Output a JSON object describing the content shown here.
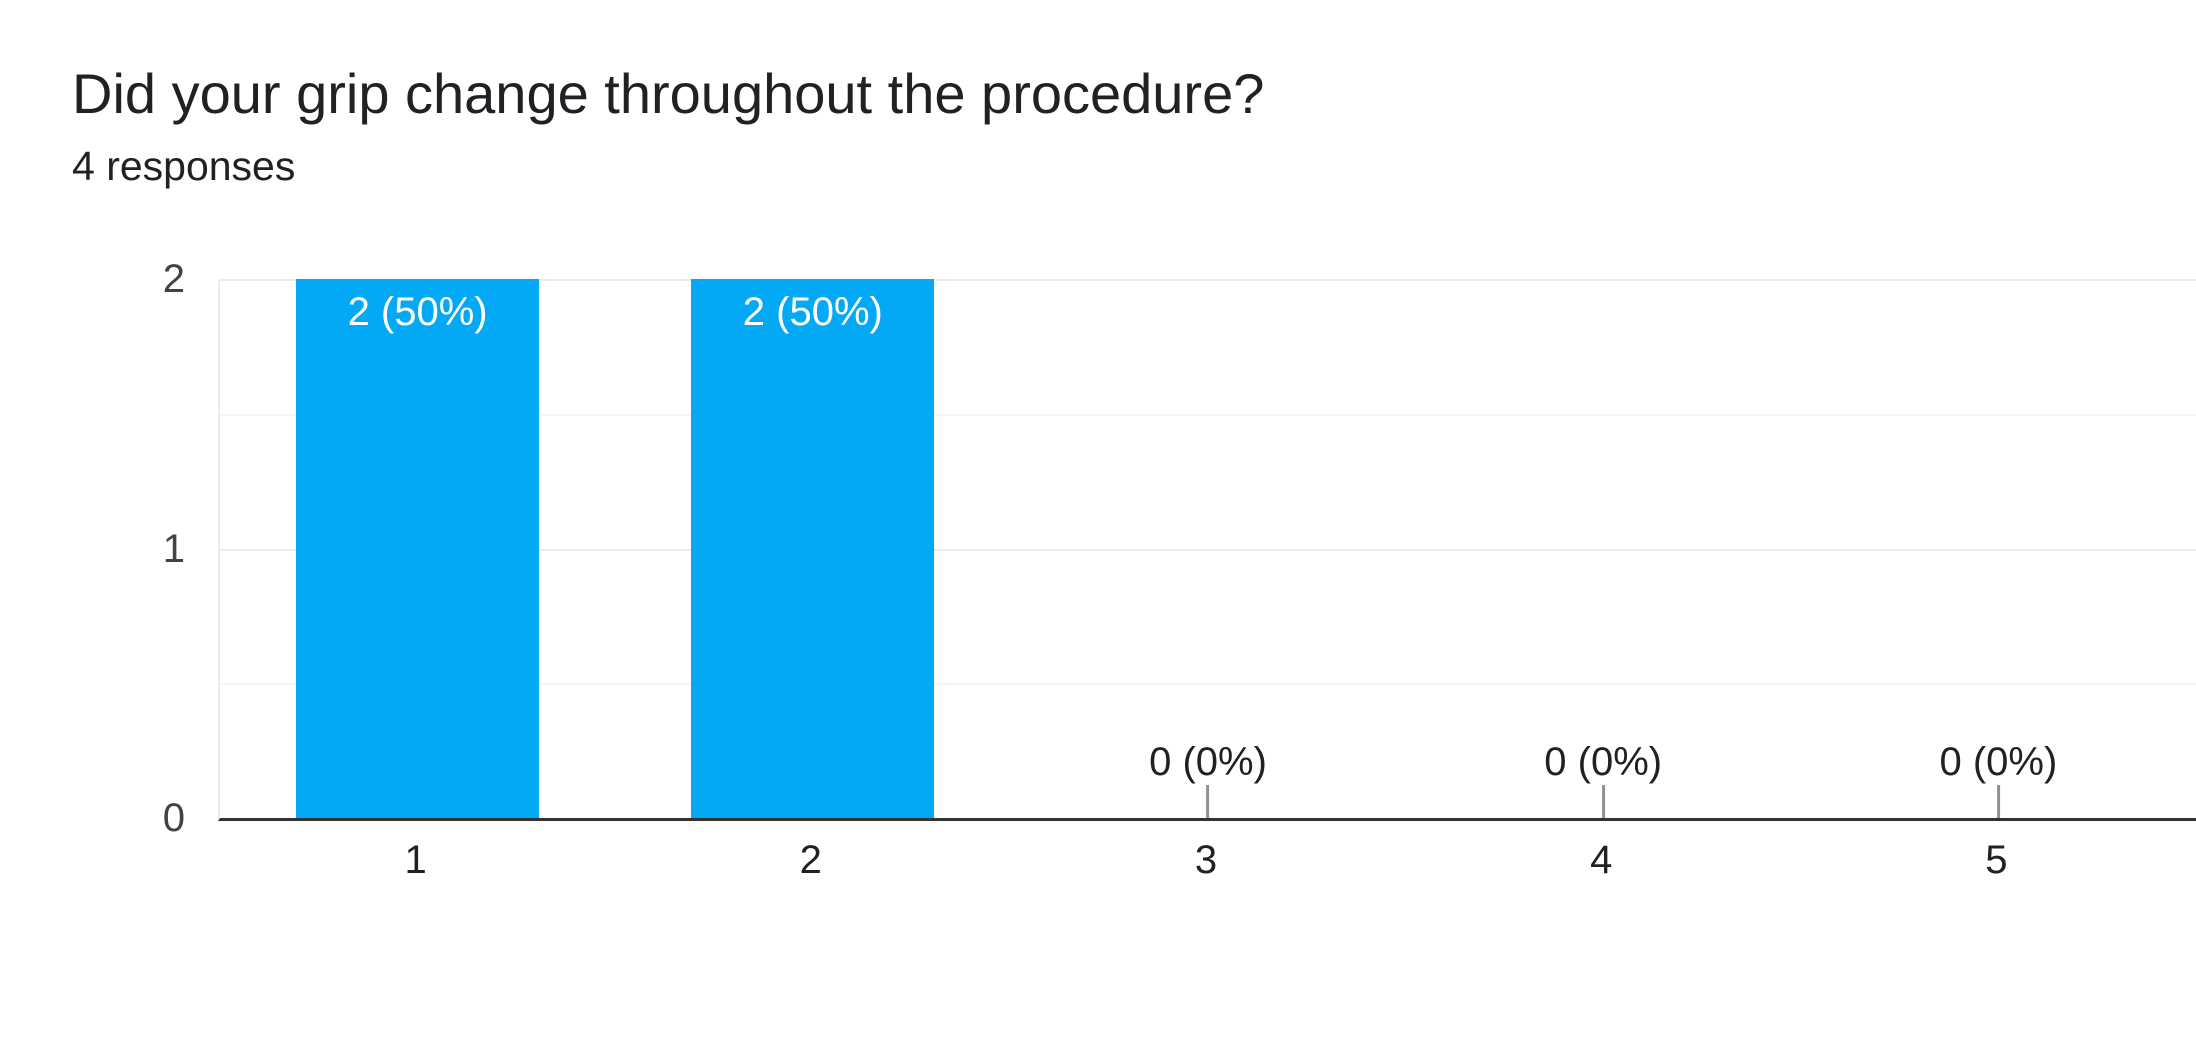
{
  "card": {
    "title": "Did your grip change throughout the procedure?",
    "subtitle": "4 responses"
  },
  "chart_data": {
    "type": "bar",
    "title": "Did your grip change throughout the procedure?",
    "subtitle": "4 responses",
    "categories": [
      "1",
      "2",
      "3",
      "4",
      "5"
    ],
    "values": [
      2,
      2,
      0,
      0,
      0
    ],
    "bar_labels": [
      "2 (50%)",
      "2 (50%)",
      "0 (0%)",
      "0 (0%)",
      "0 (0%)"
    ],
    "xlabel": "",
    "ylabel": "",
    "y_ticks": [
      "0",
      "1",
      "2"
    ],
    "ylim": [
      0,
      2
    ],
    "gridlines": {
      "major_values": [
        0,
        1,
        2
      ],
      "minor_values": [
        0.5,
        1.5
      ],
      "orientation": "horizontal"
    },
    "legend_position": "none",
    "colors": {
      "bar": "#03a9f4",
      "bar_label_text": "#ffffff",
      "zero_label_text": "#212121",
      "axis_line": "#333333",
      "major_gridline": "#ececec",
      "minor_gridline": "#f6f6f6",
      "y_tick_text": "#424242",
      "x_tick_text": "#212121",
      "title_text": "#202124",
      "stem": "#919191"
    }
  }
}
